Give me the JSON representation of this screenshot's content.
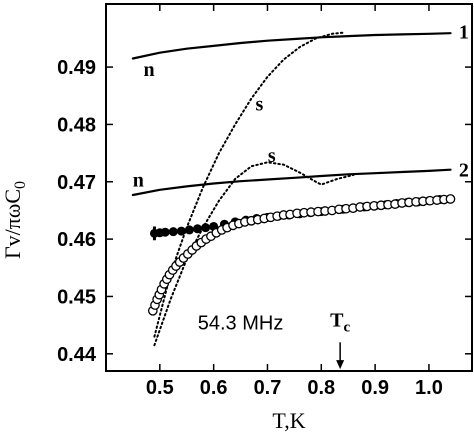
{
  "chart_data": {
    "type": "line",
    "xlabel": "T,K",
    "ylabel": "Γv/πωC",
    "ylabel_sub": "0",
    "xlim": [
      0.4,
      1.08
    ],
    "ylim": [
      0.437,
      0.501
    ],
    "x_ticks": [
      {
        "value": 0.5,
        "label": "0.5"
      },
      {
        "value": 0.6,
        "label": "0.6"
      },
      {
        "value": 0.7,
        "label": "0.7"
      },
      {
        "value": 0.8,
        "label": "0.8"
      },
      {
        "value": 0.9,
        "label": "0.9"
      },
      {
        "value": 1.0,
        "label": "1.0"
      }
    ],
    "y_ticks": [
      {
        "value": 0.44,
        "label": "0.44"
      },
      {
        "value": 0.45,
        "label": "0.45"
      },
      {
        "value": 0.46,
        "label": "0.46"
      },
      {
        "value": 0.47,
        "label": "0.47"
      },
      {
        "value": 0.48,
        "label": "0.48"
      },
      {
        "value": 0.49,
        "label": "0.49"
      }
    ],
    "curves": [
      {
        "style": "solid",
        "x": [
          0.45,
          0.5,
          0.55,
          0.6,
          0.65,
          0.7,
          0.75,
          0.8,
          0.85,
          0.9,
          0.95,
          1.0,
          1.04
        ],
        "y": [
          0.4915,
          0.4925,
          0.4932,
          0.4937,
          0.4942,
          0.4946,
          0.4949,
          0.4952,
          0.4954,
          0.4956,
          0.4957,
          0.4958,
          0.4959
        ]
      },
      {
        "style": "solid",
        "x": [
          0.45,
          0.5,
          0.55,
          0.6,
          0.65,
          0.7,
          0.75,
          0.8,
          0.85,
          0.9,
          0.95,
          1.0,
          1.04
        ],
        "y": [
          0.4677,
          0.4686,
          0.4692,
          0.4697,
          0.4701,
          0.4704,
          0.4707,
          0.471,
          0.4713,
          0.4715,
          0.4717,
          0.4719,
          0.4721
        ]
      },
      {
        "style": "dotted",
        "x": [
          0.49,
          0.52,
          0.55,
          0.58,
          0.61,
          0.64,
          0.67,
          0.7,
          0.73,
          0.76,
          0.79,
          0.82,
          0.84
        ],
        "y": [
          0.443,
          0.454,
          0.462,
          0.469,
          0.475,
          0.48,
          0.4845,
          0.4883,
          0.4913,
          0.4935,
          0.495,
          0.4958,
          0.496
        ]
      },
      {
        "style": "dotted",
        "x": [
          0.49,
          0.52,
          0.55,
          0.58,
          0.61,
          0.64,
          0.67,
          0.7,
          0.73,
          0.76,
          0.79,
          0.8,
          0.83,
          0.86
        ],
        "y": [
          0.4415,
          0.4495,
          0.4565,
          0.462,
          0.4667,
          0.4705,
          0.4727,
          0.4734,
          0.473,
          0.4716,
          0.47,
          0.4695,
          0.4705,
          0.4712
        ]
      }
    ],
    "open_circles": {
      "x": [
        0.487,
        0.491,
        0.495,
        0.499,
        0.503,
        0.508,
        0.513,
        0.518,
        0.524,
        0.53,
        0.537,
        0.544,
        0.552,
        0.56,
        0.568,
        0.577,
        0.586,
        0.595,
        0.605,
        0.615,
        0.625,
        0.636,
        0.647,
        0.658,
        0.67,
        0.682,
        0.694,
        0.706,
        0.718,
        0.73,
        0.742,
        0.755,
        0.768,
        0.781,
        0.794,
        0.807,
        0.82,
        0.833,
        0.846,
        0.859,
        0.872,
        0.885,
        0.898,
        0.911,
        0.924,
        0.937,
        0.95,
        0.963,
        0.976,
        0.989,
        1.002,
        1.015,
        1.028,
        1.04
      ],
      "y": [
        0.4475,
        0.4485,
        0.4495,
        0.4503,
        0.4512,
        0.4522,
        0.453,
        0.4538,
        0.4546,
        0.4553,
        0.456,
        0.4567,
        0.4574,
        0.4581,
        0.4588,
        0.4594,
        0.46,
        0.4605,
        0.4611,
        0.4616,
        0.462,
        0.4624,
        0.4627,
        0.463,
        0.4632,
        0.4634,
        0.4636,
        0.4638,
        0.464,
        0.4642,
        0.4643,
        0.4645,
        0.4646,
        0.4647,
        0.4648,
        0.4649,
        0.465,
        0.4652,
        0.4653,
        0.4654,
        0.4656,
        0.4657,
        0.4658,
        0.4659,
        0.466,
        0.4661,
        0.4663,
        0.4664,
        0.4665,
        0.4666,
        0.4667,
        0.4668,
        0.4669,
        0.467
      ]
    },
    "filled_circles": {
      "x": [
        0.49,
        0.5,
        0.51,
        0.525,
        0.54,
        0.555,
        0.57,
        0.585,
        0.6,
        0.62,
        0.64,
        0.66,
        0.68,
        0.7,
        0.72,
        0.74,
        0.76,
        0.78,
        0.8,
        0.82,
        0.84,
        0.86,
        0.88,
        0.9,
        0.92,
        0.94,
        0.96,
        0.98,
        1.0,
        1.02,
        1.04
      ],
      "y": [
        0.461,
        0.4611,
        0.4612,
        0.4613,
        0.4614,
        0.4616,
        0.4618,
        0.462,
        0.4622,
        0.4626,
        0.463,
        0.4633,
        0.4636,
        0.4638,
        0.464,
        0.4642,
        0.4644,
        0.4646,
        0.4648,
        0.465,
        0.4652,
        0.4654,
        0.4656,
        0.4658,
        0.466,
        0.4662,
        0.4664,
        0.4665,
        0.4667,
        0.4669,
        0.467
      ]
    },
    "error_bar": {
      "x": 0.49,
      "y": 0.461,
      "yerr": 0.0012
    },
    "labels": [
      {
        "text": "n",
        "x": 0.48,
        "y": 0.4895,
        "style": "bold"
      },
      {
        "text": "n",
        "x": 0.46,
        "y": 0.4702,
        "style": "bold"
      },
      {
        "text": "s",
        "x": 0.685,
        "y": 0.4835,
        "style": "bold"
      },
      {
        "text": "s",
        "x": 0.708,
        "y": 0.4745,
        "style": "bold"
      },
      {
        "text": "1",
        "x": 1.065,
        "y": 0.496,
        "style": "bold"
      },
      {
        "text": "2",
        "x": 1.065,
        "y": 0.472,
        "style": "bold"
      }
    ],
    "frequency_label": {
      "text": "54.3 MHz",
      "x": 0.65,
      "y": 0.4455
    },
    "tc_marker": {
      "label": "T",
      "label_sub": "c",
      "x": 0.835,
      "label_y": 0.446,
      "arrow_y0": 0.442,
      "arrow_y1": 0.4375
    }
  }
}
